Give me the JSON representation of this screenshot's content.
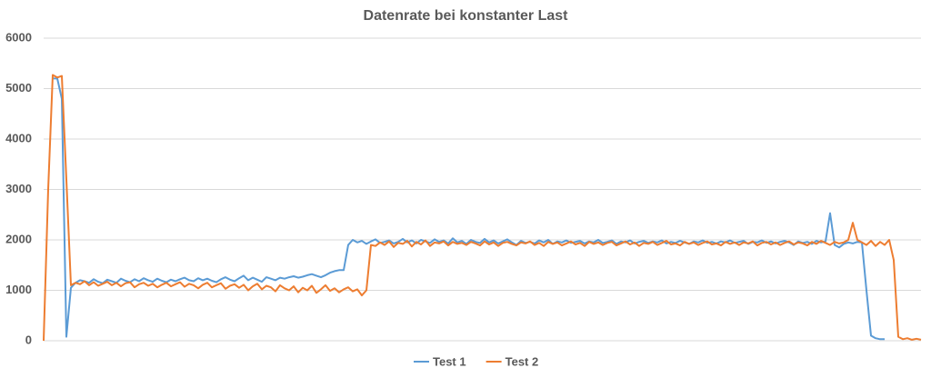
{
  "chart_data": {
    "type": "line",
    "title": "Datenrate bei konstanter Last",
    "ylim": [
      0,
      6000
    ],
    "yticks": [
      0,
      1000,
      2000,
      3000,
      4000,
      5000,
      6000
    ],
    "grid": true,
    "legend": "bottom",
    "series": [
      {
        "name": "Test 1",
        "color": "#5b9bd5",
        "values": [
          null,
          null,
          5200,
          5200,
          4800,
          80,
          1050,
          1150,
          1200,
          1180,
          1150,
          1220,
          1170,
          1140,
          1210,
          1180,
          1150,
          1230,
          1190,
          1160,
          1220,
          1180,
          1240,
          1200,
          1170,
          1230,
          1190,
          1160,
          1210,
          1180,
          1220,
          1250,
          1200,
          1180,
          1240,
          1200,
          1230,
          1190,
          1160,
          1220,
          1260,
          1210,
          1180,
          1240,
          1290,
          1200,
          1250,
          1210,
          1170,
          1260,
          1230,
          1200,
          1250,
          1230,
          1260,
          1280,
          1250,
          1270,
          1300,
          1320,
          1290,
          1260,
          1300,
          1350,
          1380,
          1400,
          1400,
          1900,
          2000,
          1950,
          1980,
          1920,
          1970,
          2010,
          1940,
          1960,
          1990,
          1930,
          1960,
          2020,
          1950,
          1990,
          1930,
          2000,
          1970,
          1940,
          2010,
          1960,
          1990,
          1930,
          2030,
          1950,
          1980,
          1920,
          2000,
          1960,
          1940,
          2020,
          1950,
          1990,
          1930,
          1970,
          2010,
          1950,
          1900,
          1980,
          1940,
          1960,
          1930,
          1990,
          1950,
          2000,
          1920,
          1970,
          1950,
          1990,
          1940,
          1960,
          1980,
          1930,
          1970,
          1950,
          2000,
          1940,
          1960,
          1990,
          1920,
          1970,
          1950,
          1990,
          1930,
          1960,
          1980,
          1940,
          1970,
          1950,
          1990,
          1930,
          1960,
          1940,
          1980,
          1950,
          1920,
          1970,
          1950,
          1990,
          1940,
          1960,
          1930,
          1970,
          1950,
          1990,
          1940,
          1960,
          1980,
          1920,
          1960,
          1950,
          1990,
          1940,
          1970,
          1930,
          1960,
          1980,
          1950,
          1900,
          1970,
          1940,
          1960,
          1920,
          1980,
          1950,
          1970,
          2530,
          1900,
          1850,
          1920,
          1950,
          1930,
          1960,
          1950,
          1000,
          100,
          50,
          30,
          30,
          null,
          null,
          null,
          null,
          null,
          null,
          null,
          null
        ]
      },
      {
        "name": "Test 2",
        "color": "#ed7d31",
        "values": [
          0,
          3000,
          5270,
          5220,
          5250,
          3200,
          1100,
          1150,
          1120,
          1180,
          1100,
          1160,
          1090,
          1130,
          1170,
          1100,
          1150,
          1080,
          1140,
          1160,
          1060,
          1120,
          1150,
          1090,
          1130,
          1060,
          1110,
          1150,
          1080,
          1120,
          1160,
          1070,
          1130,
          1100,
          1040,
          1110,
          1150,
          1060,
          1100,
          1140,
          1030,
          1090,
          1120,
          1050,
          1110,
          1000,
          1080,
          1130,
          1020,
          1090,
          1060,
          980,
          1100,
          1040,
          1000,
          1080,
          960,
          1050,
          1000,
          1090,
          950,
          1020,
          1100,
          990,
          1040,
          960,
          1020,
          1060,
          980,
          1020,
          900,
          1000,
          1900,
          1880,
          1950,
          1900,
          1970,
          1860,
          1940,
          1920,
          1980,
          1870,
          1960,
          1910,
          1990,
          1880,
          1950,
          1930,
          1970,
          1890,
          1960,
          1920,
          1940,
          1900,
          1960,
          1930,
          1890,
          1970,
          1910,
          1950,
          1880,
          1940,
          1960,
          1920,
          1890,
          1950,
          1930,
          1970,
          1900,
          1940,
          1880,
          1960,
          1920,
          1950,
          1890,
          1930,
          1970,
          1910,
          1940,
          1880,
          1960,
          1920,
          1950,
          1900,
          1940,
          1960,
          1890,
          1930,
          1970,
          1910,
          1950,
          1880,
          1940,
          1920,
          1960,
          1900,
          1940,
          1980,
          1910,
          1930,
          1890,
          1960,
          1920,
          1950,
          1900,
          1940,
          1970,
          1910,
          1930,
          1890,
          1960,
          1920,
          1950,
          1900,
          1950,
          1930,
          1970,
          1890,
          1940,
          1960,
          1910,
          1950,
          1900,
          1940,
          1970,
          1910,
          1950,
          1930,
          1890,
          1960,
          1920,
          1980,
          1940,
          1900,
          1960,
          1930,
          1950,
          2000,
          2340,
          2000,
          1950,
          1900,
          1980,
          1880,
          1960,
          1900,
          2000,
          1600,
          80,
          30,
          50,
          20,
          40,
          20
        ]
      }
    ]
  }
}
